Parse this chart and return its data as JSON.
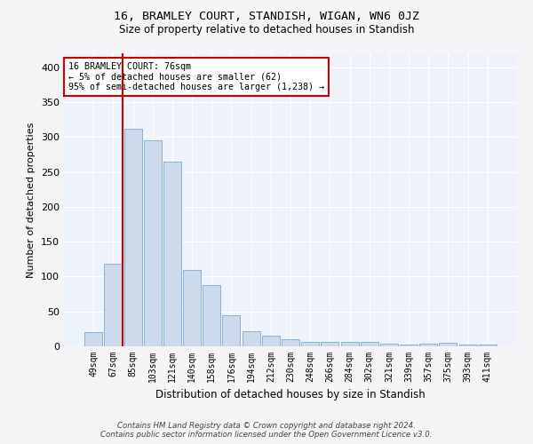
{
  "title": "16, BRAMLEY COURT, STANDISH, WIGAN, WN6 0JZ",
  "subtitle": "Size of property relative to detached houses in Standish",
  "xlabel": "Distribution of detached houses by size in Standish",
  "ylabel": "Number of detached properties",
  "footer_line1": "Contains HM Land Registry data © Crown copyright and database right 2024.",
  "footer_line2": "Contains public sector information licensed under the Open Government Licence v3.0.",
  "bar_labels": [
    "49sqm",
    "67sqm",
    "85sqm",
    "103sqm",
    "121sqm",
    "140sqm",
    "158sqm",
    "176sqm",
    "194sqm",
    "212sqm",
    "230sqm",
    "248sqm",
    "266sqm",
    "284sqm",
    "302sqm",
    "321sqm",
    "339sqm",
    "357sqm",
    "375sqm",
    "393sqm",
    "411sqm"
  ],
  "bar_values": [
    20,
    119,
    312,
    295,
    265,
    110,
    88,
    45,
    22,
    15,
    10,
    7,
    6,
    6,
    7,
    4,
    3,
    4,
    5,
    3,
    3
  ],
  "bar_color": "#ccdaeb",
  "bar_edge_color": "#7aabcc",
  "bg_color": "#eef2fa",
  "grid_color": "#ffffff",
  "vline_color": "#cc0000",
  "annotation_box_edgecolor": "#cc0000",
  "annotation_line1": "16 BRAMLEY COURT: 76sqm",
  "annotation_line2": "← 5% of detached houses are smaller (62)",
  "annotation_line3": "95% of semi-detached houses are larger (1,238) →",
  "ylim": [
    0,
    420
  ],
  "yticks": [
    0,
    50,
    100,
    150,
    200,
    250,
    300,
    350,
    400
  ],
  "fig_facecolor": "#f5f5f8"
}
